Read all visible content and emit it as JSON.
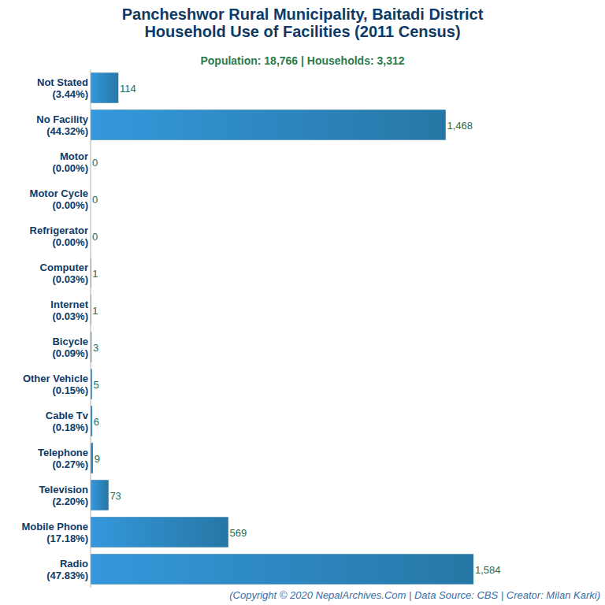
{
  "chart_data": {
    "type": "bar",
    "orientation": "horizontal",
    "title": "Pancheshwor Rural Municipality, Baitadi District\nHousehold Use of Facilities (2011 Census)",
    "subtitle": "Population: 18,766 | Households: 3,312",
    "caption": "(Copyright © 2020 NepalArchives.Com | Data Source: CBS | Creator: Milan Karki)",
    "categories": [
      "Not Stated\n(3.44%)",
      "No Facility\n(44.32%)",
      "Motor\n(0.00%)",
      "Motor Cycle\n(0.00%)",
      "Refrigerator\n(0.00%)",
      "Computer\n(0.03%)",
      "Internet\n(0.03%)",
      "Bicycle\n(0.09%)",
      "Other Vehicle\n(0.15%)",
      "Cable Tv\n(0.18%)",
      "Telephone\n(0.27%)",
      "Television\n(2.20%)",
      "Mobile Phone\n(17.18%)",
      "Radio\n(47.83%)"
    ],
    "values": [
      114,
      1468,
      0,
      0,
      0,
      1,
      1,
      3,
      5,
      6,
      9,
      73,
      569,
      1584
    ],
    "value_labels": [
      "114",
      "1,468",
      "0",
      "0",
      "0",
      "1",
      "1",
      "3",
      "5",
      "6",
      "9",
      "73",
      "569",
      "1,584"
    ],
    "color": "#3598dc",
    "xlim": [
      0,
      1584
    ],
    "grid": false,
    "data_labels": true,
    "tick_labels": "y"
  }
}
